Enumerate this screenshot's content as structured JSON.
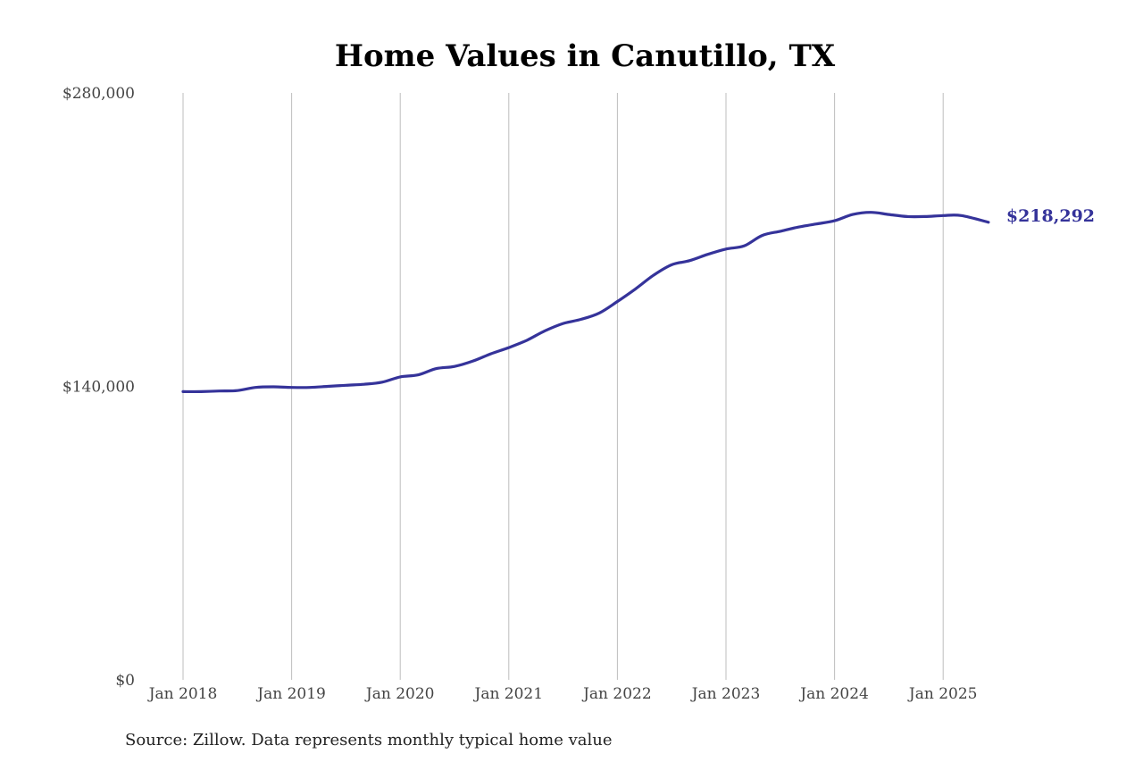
{
  "chart_data": {
    "type": "line",
    "title": "Home Values in Canutillo, TX",
    "source": "Source: Zillow. Data represents monthly typical home value",
    "xlabel": "",
    "ylabel": "",
    "ylim": [
      0,
      280000
    ],
    "xlim": [
      "2018-01",
      "2025-06"
    ],
    "y_ticks": [
      {
        "value": 0,
        "label": "$0"
      },
      {
        "value": 140000,
        "label": "$140,000"
      },
      {
        "value": 280000,
        "label": "$280,000"
      }
    ],
    "x_ticks": [
      {
        "value": "2018-01",
        "label": "Jan 2018"
      },
      {
        "value": "2019-01",
        "label": "Jan 2019"
      },
      {
        "value": "2020-01",
        "label": "Jan 2020"
      },
      {
        "value": "2021-01",
        "label": "Jan 2021"
      },
      {
        "value": "2022-01",
        "label": "Jan 2022"
      },
      {
        "value": "2023-01",
        "label": "Jan 2023"
      },
      {
        "value": "2024-01",
        "label": "Jan 2024"
      },
      {
        "value": "2025-01",
        "label": "Jan 2025"
      }
    ],
    "grid": {
      "vertical": true,
      "horizontal": false
    },
    "line_color": "#35339a",
    "end_label": "$218,292",
    "series": [
      {
        "x": [
          "2018-01",
          "2018-03",
          "2018-05",
          "2018-07",
          "2018-09",
          "2018-11",
          "2019-01",
          "2019-03",
          "2019-05",
          "2019-07",
          "2019-09",
          "2019-11",
          "2020-01",
          "2020-03",
          "2020-05",
          "2020-07",
          "2020-09",
          "2020-11",
          "2021-01",
          "2021-03",
          "2021-05",
          "2021-07",
          "2021-09",
          "2021-11",
          "2022-01",
          "2022-03",
          "2022-05",
          "2022-07",
          "2022-09",
          "2022-11",
          "2023-01",
          "2023-03",
          "2023-05",
          "2023-07",
          "2023-09",
          "2023-11",
          "2024-01",
          "2024-03",
          "2024-05",
          "2024-07",
          "2024-09",
          "2024-11",
          "2025-01",
          "2025-03",
          "2025-06"
        ],
        "values": [
          137500,
          137500,
          137800,
          138000,
          139500,
          139800,
          139500,
          139500,
          140000,
          140500,
          141000,
          142000,
          144500,
          145500,
          148500,
          149500,
          152000,
          155500,
          158500,
          162000,
          166500,
          170000,
          172000,
          175000,
          180500,
          186500,
          193000,
          198000,
          200000,
          203000,
          205500,
          207000,
          212000,
          214000,
          216000,
          217500,
          219000,
          222000,
          223000,
          222000,
          221000,
          221000,
          221500,
          221500,
          218292
        ]
      }
    ]
  }
}
